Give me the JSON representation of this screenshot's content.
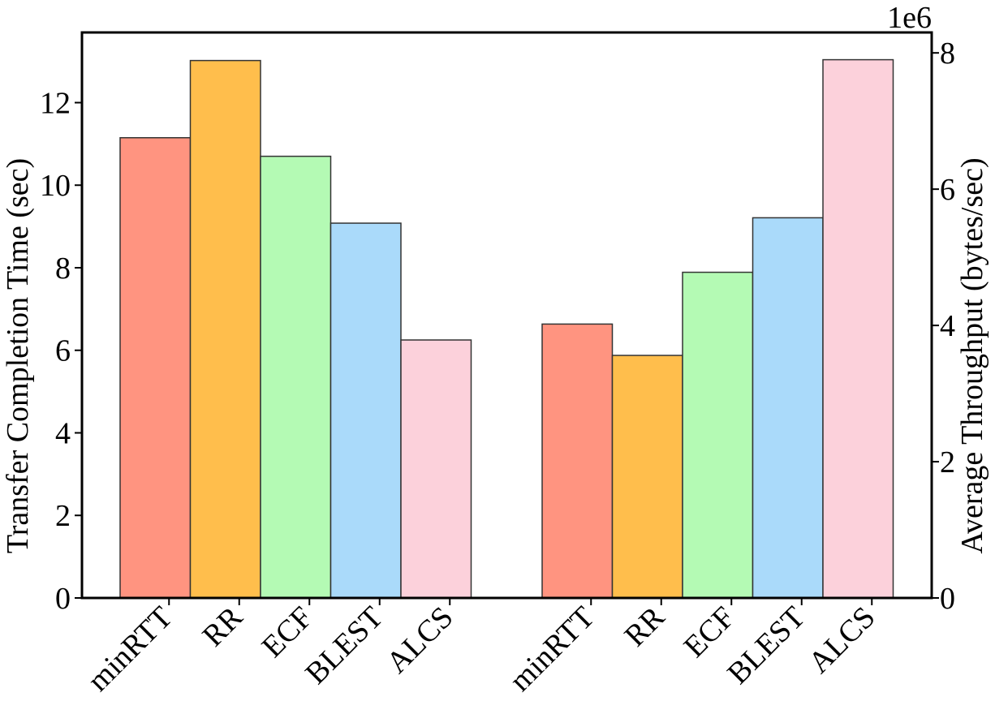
{
  "chart_data": {
    "type": "bar",
    "categories": [
      "minRTT",
      "RR",
      "ECF",
      "BLEST",
      "ALCS"
    ],
    "colors": [
      "#FF9480",
      "#FFBE4C",
      "#B4FAB4",
      "#AADAFA",
      "#FCD1DB"
    ],
    "groups": [
      {
        "axis": "left",
        "values": [
          11.15,
          13.02,
          10.7,
          9.08,
          6.25
        ]
      },
      {
        "axis": "right",
        "values": [
          4020000.0,
          3560000.0,
          4780000.0,
          5580000.0,
          7900000.0
        ]
      }
    ],
    "left_axis": {
      "label": "Transfer Completion Time (sec)",
      "ylim": [
        0,
        13.7
      ],
      "ticks": [
        "0",
        "2",
        "4",
        "6",
        "8",
        "10",
        "12"
      ],
      "tick_values": [
        0,
        2,
        4,
        6,
        8,
        10,
        12
      ]
    },
    "right_axis": {
      "label": "Average Throughput (bytes/sec)",
      "ylim": [
        0,
        8300000.0
      ],
      "ticks": [
        "0",
        "2",
        "4",
        "6",
        "8"
      ],
      "tick_values": [
        0,
        2000000.0,
        4000000.0,
        6000000.0,
        8000000.0
      ],
      "offset_label": "1e6"
    },
    "grid": false,
    "legend": "none"
  }
}
